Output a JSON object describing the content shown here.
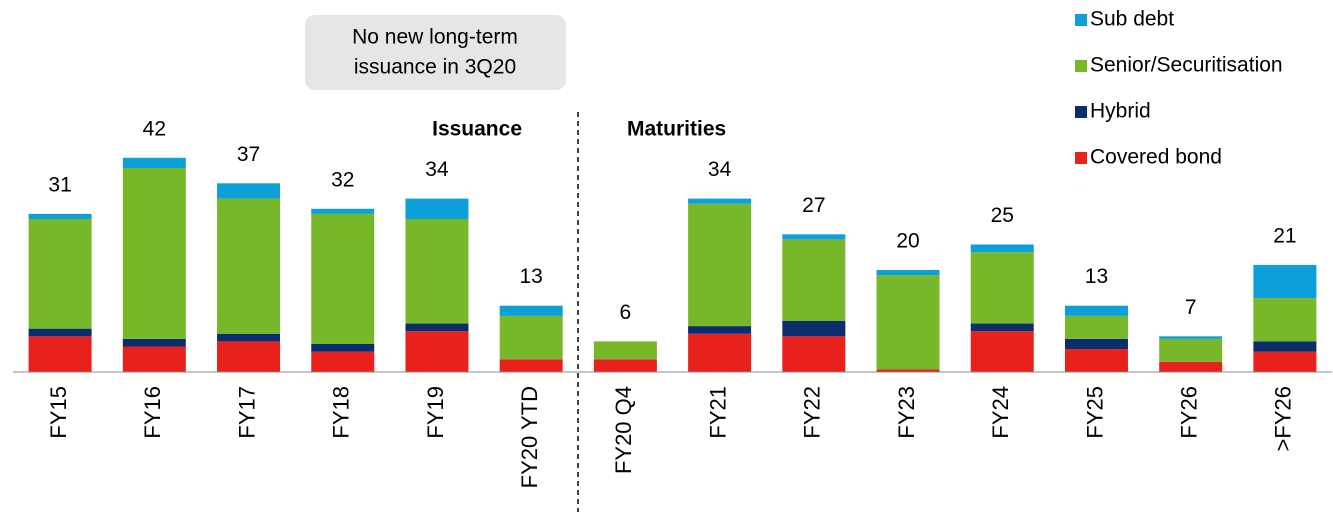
{
  "chart_data": {
    "type": "stacked_bar",
    "categories": [
      "FY15",
      "FY16",
      "FY17",
      "FY18",
      "FY19",
      "FY20 YTD",
      "FY20 Q4",
      "FY21",
      "FY22",
      "FY23",
      "FY24",
      "FY25",
      "FY26",
      ">FY26"
    ],
    "series": [
      {
        "name": "Covered bond",
        "color": "#e8211d",
        "values": [
          7,
          5,
          6,
          4,
          8,
          2.5,
          2.5,
          7.5,
          7,
          0.5,
          8,
          4.5,
          2,
          4
        ]
      },
      {
        "name": "Hybrid",
        "color": "#0a2d6e",
        "values": [
          1.5,
          1.5,
          1.5,
          1.5,
          1.5,
          0,
          0,
          1.5,
          3,
          0,
          1.5,
          2,
          0,
          2
        ]
      },
      {
        "name": "Senior/Securitisation",
        "color": "#76b82a",
        "values": [
          21.5,
          33.5,
          26.5,
          25.5,
          20.5,
          8.5,
          3.5,
          24,
          16,
          18.5,
          14,
          4.5,
          4.5,
          8.5
        ]
      },
      {
        "name": "Sub debt",
        "color": "#0da0d8",
        "values": [
          1,
          2,
          3,
          1,
          4,
          2,
          0,
          1,
          1,
          1,
          1.5,
          2,
          0.5,
          6.5
        ]
      }
    ],
    "totals": [
      31,
      42,
      37,
      32,
      34,
      13,
      6,
      34,
      27,
      20,
      25,
      13,
      7,
      21
    ],
    "ylim": [
      0,
      53
    ],
    "section_labels": [
      "Issuance",
      "Maturities"
    ],
    "annotation": [
      "No new long-term",
      "issuance in 3Q20"
    ],
    "legend": "top-right"
  }
}
